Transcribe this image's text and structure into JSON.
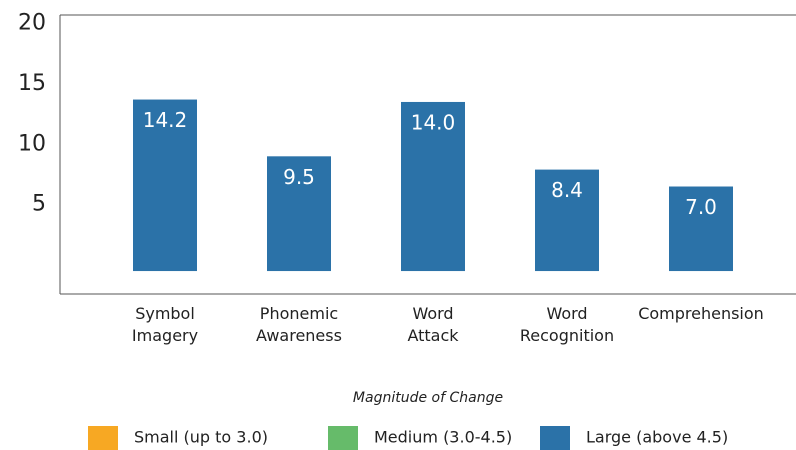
{
  "chart_data": {
    "type": "bar",
    "categories": [
      "Symbol Imagery",
      "Phonemic Awareness",
      "Word Attack",
      "Word Recognition",
      "Comprehension"
    ],
    "values": [
      14.2,
      9.5,
      14.0,
      8.4,
      7.0
    ],
    "value_labels": [
      "14.2",
      "9.5",
      "14.0",
      "8.4",
      "7.0"
    ],
    "color": "#2b72a8",
    "ylim": [
      -1.9,
      21.2
    ],
    "yticks": [
      5,
      10,
      15,
      20
    ],
    "legend_title": "Magnitude of Change",
    "legend_items": [
      {
        "name": "Small (up to 3.0)",
        "color": "#f7a823"
      },
      {
        "name": "Medium (3.0-4.5)",
        "color": "#66bb6a"
      },
      {
        "name": "Large (above 4.5)",
        "color": "#2b72a8"
      }
    ]
  }
}
